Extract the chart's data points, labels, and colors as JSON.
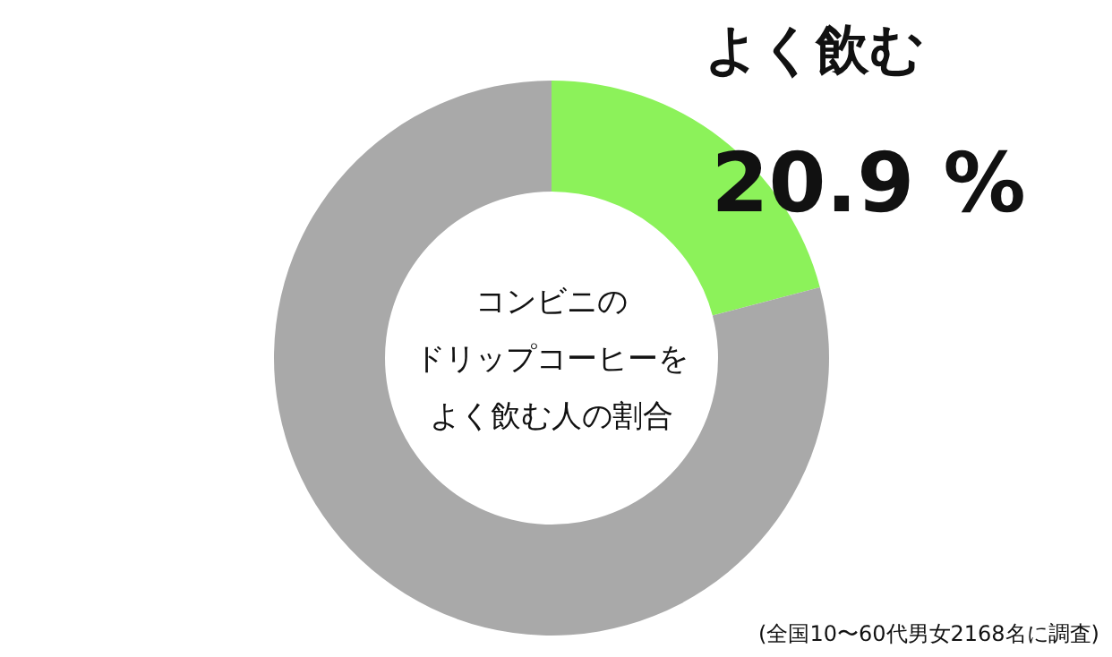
{
  "chart_data": {
    "type": "donut",
    "title": "コンビニのドリップコーヒーをよく飲む人の割合",
    "categories": [
      "よく飲む",
      null
    ],
    "values": [
      20.9,
      79.1
    ],
    "colors": [
      "#8cf25a",
      "#a9a9a9"
    ],
    "value_labels": [
      "20.9 %",
      null
    ],
    "legend": false,
    "annotations": [
      "(全国10〜60代男女2168名に調査)"
    ]
  }
}
